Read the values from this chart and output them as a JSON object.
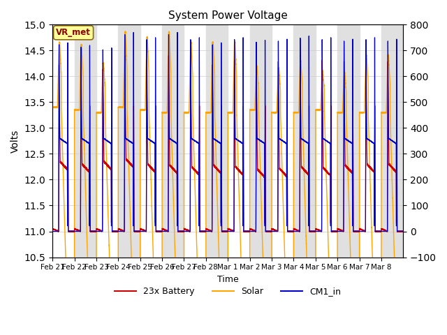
{
  "title": "System Power Voltage",
  "xlabel": "Time",
  "ylabel_left": "Volts",
  "ylim_left": [
    10.5,
    15.0
  ],
  "ylim_right": [
    -100,
    800
  ],
  "yticks_left": [
    10.5,
    11.0,
    11.5,
    12.0,
    12.5,
    13.0,
    13.5,
    14.0,
    14.5,
    15.0
  ],
  "yticks_right": [
    -100,
    0,
    100,
    200,
    300,
    400,
    500,
    600,
    700,
    800
  ],
  "xtick_labels": [
    "Feb 21",
    "Feb 22",
    "Feb 23",
    "Feb 24",
    "Feb 25",
    "Feb 26",
    "Feb 27",
    "Feb 28",
    "Mar 1",
    "Mar 2",
    "Mar 3",
    "Mar 4",
    "Mar 5",
    "Mar 6",
    "Mar 7",
    "Mar 8"
  ],
  "color_battery": "#cc0000",
  "color_solar": "#ffa500",
  "color_cm1": "#0000cc",
  "color_band_gray": "#e0e0e0",
  "legend_labels": [
    "23x Battery",
    "Solar",
    "CM1_in"
  ],
  "vr_met_label": "VR_met",
  "num_days": 16,
  "annotation_box_color": "#ffff99",
  "annotation_text_color": "#8b0000",
  "annotation_border_color": "#8b6914"
}
